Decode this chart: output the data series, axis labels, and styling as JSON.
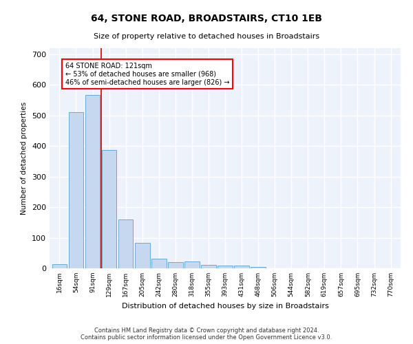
{
  "title_line1": "64, STONE ROAD, BROADSTAIRS, CT10 1EB",
  "title_line2": "Size of property relative to detached houses in Broadstairs",
  "xlabel": "Distribution of detached houses by size in Broadstairs",
  "ylabel": "Number of detached properties",
  "footer_line1": "Contains HM Land Registry data © Crown copyright and database right 2024.",
  "footer_line2": "Contains public sector information licensed under the Open Government Licence v3.0.",
  "bar_labels": [
    "16sqm",
    "54sqm",
    "91sqm",
    "129sqm",
    "167sqm",
    "205sqm",
    "242sqm",
    "280sqm",
    "318sqm",
    "355sqm",
    "393sqm",
    "431sqm",
    "468sqm",
    "506sqm",
    "544sqm",
    "582sqm",
    "619sqm",
    "657sqm",
    "695sqm",
    "732sqm",
    "770sqm"
  ],
  "bar_values": [
    13,
    510,
    568,
    388,
    160,
    83,
    32,
    21,
    22,
    11,
    9,
    10,
    5,
    0,
    0,
    0,
    0,
    0,
    0,
    0,
    0
  ],
  "bar_color": "#c5d8f0",
  "bar_edge_color": "#6aaad4",
  "background_color": "#eef2fb",
  "grid_color": "#ffffff",
  "ylim": [
    0,
    720
  ],
  "yticks": [
    0,
    100,
    200,
    300,
    400,
    500,
    600,
    700
  ],
  "annotation_text": "64 STONE ROAD: 121sqm\n← 53% of detached houses are smaller (968)\n46% of semi-detached houses are larger (826) →",
  "red_line_color": "#cc0000",
  "property_sqm": 121
}
